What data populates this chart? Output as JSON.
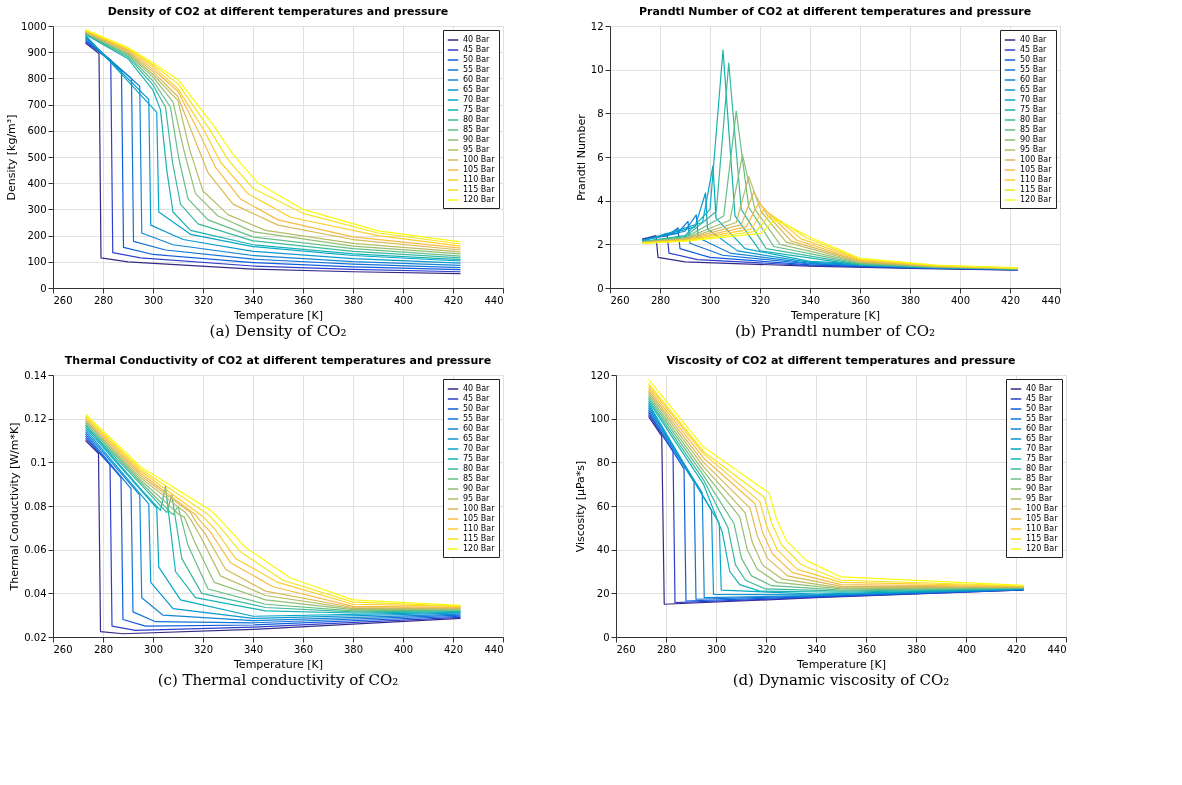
{
  "chart_data": [
    {
      "type": "line",
      "title": "Density of CO2 at different temperatures and pressure",
      "xlabel": "Temperature [K]",
      "ylabel": "Density [kg/m³]",
      "xlim": [
        260,
        440
      ],
      "xticks": [
        260,
        280,
        300,
        320,
        340,
        360,
        380,
        400,
        420,
        440
      ],
      "ylim": [
        0,
        1000
      ],
      "yticks": [
        0,
        100,
        200,
        300,
        400,
        500,
        600,
        700,
        800,
        900,
        1000
      ],
      "grid": true,
      "legend": "top right",
      "annotations": [
        "(a) Density of CO₂"
      ],
      "series": [
        {
          "name": "40 Bar",
          "color": "#352a87",
          "x": [
            273,
            278.4,
            279.2,
            290,
            340,
            380,
            423
          ],
          "values": [
            935,
            895,
            115,
            100,
            72,
            62,
            55
          ]
        },
        {
          "name": "45 Bar",
          "color": "#2f3fcd",
          "x": [
            273,
            283.1,
            283.9,
            295,
            340,
            380,
            423
          ],
          "values": [
            940,
            870,
            135,
            115,
            84,
            71,
            62
          ]
        },
        {
          "name": "50 Bar",
          "color": "#0f5cdd",
          "x": [
            273,
            287.4,
            288.2,
            300,
            340,
            380,
            423
          ],
          "values": [
            945,
            830,
            155,
            128,
            97,
            81,
            70
          ]
        },
        {
          "name": "55 Bar",
          "color": "#1172d9",
          "x": [
            273,
            291.4,
            292.2,
            305,
            340,
            380,
            423
          ],
          "values": [
            950,
            800,
            178,
            145,
            110,
            91,
            78
          ]
        },
        {
          "name": "60 Bar",
          "color": "#1485d4",
          "x": [
            273,
            294.7,
            295.5,
            308,
            340,
            380,
            423
          ],
          "values": [
            955,
            770,
            210,
            165,
            124,
            101,
            86
          ]
        },
        {
          "name": "65 Bar",
          "color": "#0998d1",
          "x": [
            273,
            298.3,
            299.1,
            312,
            340,
            380,
            423
          ],
          "values": [
            960,
            720,
            240,
            185,
            140,
            112,
            95
          ]
        },
        {
          "name": "70 Bar",
          "color": "#06a7c6",
          "x": [
            273,
            301.5,
            302.3,
            315,
            340,
            380,
            423
          ],
          "values": [
            965,
            670,
            290,
            205,
            158,
            124,
            103
          ]
        },
        {
          "name": "75 Bar",
          "color": "#15b1b4",
          "x": [
            273,
            290,
            300,
            303,
            305.5,
            308,
            315,
            340,
            380,
            423
          ],
          "values": [
            968,
            875,
            755,
            680,
            450,
            290,
            220,
            165,
            130,
            108
          ]
        },
        {
          "name": "80 Bar",
          "color": "#38b99e",
          "x": [
            273,
            290,
            300,
            305,
            307.8,
            311,
            318,
            340,
            380,
            423
          ],
          "values": [
            970,
            882,
            775,
            690,
            480,
            320,
            245,
            180,
            140,
            115
          ]
        },
        {
          "name": "85 Bar",
          "color": "#65be86",
          "x": [
            273,
            290,
            300,
            307,
            310.2,
            314,
            322,
            340,
            380,
            423
          ],
          "values": [
            972,
            888,
            790,
            690,
            500,
            340,
            260,
            195,
            150,
            122
          ]
        },
        {
          "name": "90 Bar",
          "color": "#92bf73",
          "x": [
            273,
            290,
            300,
            308,
            312.5,
            317,
            326,
            340,
            380,
            423
          ],
          "values": [
            974,
            893,
            805,
            710,
            520,
            360,
            275,
            215,
            160,
            130
          ]
        },
        {
          "name": "95 Bar",
          "color": "#b7bd64",
          "x": [
            273,
            290,
            300,
            310,
            314.6,
            320,
            330,
            345,
            380,
            423
          ],
          "values": [
            976,
            898,
            815,
            715,
            530,
            370,
            280,
            220,
            170,
            138
          ]
        },
        {
          "name": "100 Bar",
          "color": "#d9ba56",
          "x": [
            273,
            290,
            300,
            310,
            316.6,
            322,
            332,
            350,
            380,
            423
          ],
          "values": [
            978,
            903,
            825,
            730,
            570,
            440,
            320,
            240,
            185,
            145
          ]
        },
        {
          "name": "105 Bar",
          "color": "#f8bb44",
          "x": [
            273,
            290,
            300,
            310,
            318.6,
            325,
            335,
            350,
            380,
            423
          ],
          "values": [
            980,
            907,
            835,
            750,
            590,
            460,
            340,
            260,
            195,
            152
          ]
        },
        {
          "name": "110 Bar",
          "color": "#fcce2e",
          "x": [
            273,
            290,
            300,
            310,
            320.5,
            327,
            338,
            355,
            390,
            423
          ],
          "values": [
            982,
            911,
            845,
            760,
            600,
            480,
            360,
            270,
            200,
            160
          ]
        },
        {
          "name": "115 Bar",
          "color": "#f5e41d",
          "x": [
            273,
            290,
            300,
            310,
            322.3,
            330,
            340,
            360,
            390,
            423
          ],
          "values": [
            984,
            915,
            852,
            780,
            610,
            490,
            380,
            285,
            210,
            168
          ]
        },
        {
          "name": "120 Bar",
          "color": "#f9fb0e",
          "x": [
            273,
            290,
            300,
            310,
            324.2,
            332,
            342,
            360,
            390,
            423
          ],
          "values": [
            986,
            918,
            860,
            795,
            620,
            510,
            400,
            300,
            218,
            176
          ]
        }
      ]
    },
    {
      "type": "line",
      "title": "Prandtl Number of CO2 at different temperatures and pressure",
      "xlabel": "Temperature [K]",
      "ylabel": "Prandtl Number",
      "xlim": [
        260,
        440
      ],
      "xticks": [
        260,
        280,
        300,
        320,
        340,
        360,
        380,
        400,
        420,
        440
      ],
      "ylim": [
        0,
        12
      ],
      "yticks": [
        0,
        2,
        4,
        6,
        8,
        10,
        12
      ],
      "grid": true,
      "legend": "top right",
      "annotations": [
        "(b) Prandtl number of CO₂"
      ],
      "series": [
        {
          "name": "40 Bar",
          "color": "#352a87",
          "x": [
            273,
            275,
            278.4,
            279.2,
            290,
            340,
            380,
            423
          ],
          "values": [
            2.25,
            2.3,
            2.4,
            1.4,
            1.2,
            1.0,
            0.9,
            0.82
          ]
        },
        {
          "name": "45 Bar",
          "color": "#2f3fcd",
          "x": [
            273,
            279,
            282.8,
            283.6,
            295,
            340,
            380,
            423
          ],
          "values": [
            2.24,
            2.35,
            2.5,
            1.6,
            1.3,
            1.03,
            0.92,
            0.83
          ]
        },
        {
          "name": "50 Bar",
          "color": "#0f5cdd",
          "x": [
            273,
            283,
            287.2,
            288,
            300,
            340,
            380,
            423
          ],
          "values": [
            2.22,
            2.4,
            2.75,
            1.8,
            1.4,
            1.06,
            0.93,
            0.84
          ]
        },
        {
          "name": "55 Bar",
          "color": "#1172d9",
          "x": [
            273,
            287,
            291.2,
            292,
            305,
            340,
            380,
            423
          ],
          "values": [
            2.2,
            2.5,
            3.05,
            2.05,
            1.5,
            1.1,
            0.95,
            0.85
          ]
        },
        {
          "name": "60 Bar",
          "color": "#1485d4",
          "x": [
            273,
            290,
            294.5,
            295.3,
            308,
            340,
            380,
            423
          ],
          "values": [
            2.19,
            2.6,
            3.35,
            2.3,
            1.6,
            1.13,
            0.96,
            0.85
          ]
        },
        {
          "name": "65 Bar",
          "color": "#0998d1",
          "x": [
            273,
            294,
            298.2,
            299,
            311,
            340,
            380,
            423
          ],
          "values": [
            2.17,
            2.8,
            4.35,
            2.7,
            1.7,
            1.17,
            0.98,
            0.86
          ]
        },
        {
          "name": "70 Bar",
          "color": "#06a7c6",
          "x": [
            273,
            297,
            301.2,
            302.4,
            314,
            340,
            380,
            423
          ],
          "values": [
            2.15,
            3.0,
            5.6,
            3.2,
            1.8,
            1.22,
            1.0,
            0.86
          ]
        },
        {
          "name": "75 Bar",
          "color": "#15b1b4",
          "x": [
            273,
            290,
            300,
            305.2,
            310,
            320,
            360,
            390,
            423
          ],
          "values": [
            2.13,
            2.4,
            3.6,
            10.9,
            3.3,
            1.7,
            1.05,
            0.93,
            0.87
          ]
        },
        {
          "name": "80 Bar",
          "color": "#38b99e",
          "x": [
            273,
            290,
            302.5,
            307.5,
            312.5,
            322.5,
            360,
            390,
            423
          ],
          "values": [
            2.12,
            2.35,
            3.5,
            10.3,
            3.6,
            1.8,
            1.08,
            0.95,
            0.88
          ]
        },
        {
          "name": "85 Bar",
          "color": "#65be86",
          "x": [
            273,
            290,
            305.5,
            310.5,
            315.5,
            325.5,
            360,
            390,
            423
          ],
          "values": [
            2.11,
            2.3,
            3.3,
            8.1,
            3.7,
            1.9,
            1.12,
            0.96,
            0.88
          ]
        },
        {
          "name": "90 Bar",
          "color": "#92bf73",
          "x": [
            273,
            290,
            308,
            313,
            318,
            328,
            360,
            390,
            423
          ],
          "values": [
            2.1,
            2.28,
            3.1,
            6.1,
            3.6,
            2.0,
            1.15,
            0.97,
            0.89
          ]
        },
        {
          "name": "95 Bar",
          "color": "#b7bd64",
          "x": [
            273,
            290,
            310.5,
            315.5,
            320.5,
            330.5,
            360,
            390,
            423
          ],
          "values": [
            2.09,
            2.25,
            3.0,
            5.1,
            3.5,
            2.1,
            1.18,
            0.98,
            0.89
          ]
        },
        {
          "name": "100 Bar",
          "color": "#d9ba56",
          "x": [
            273,
            290,
            312.5,
            317.5,
            322.5,
            332.5,
            360,
            390,
            423
          ],
          "values": [
            2.08,
            2.22,
            2.9,
            4.4,
            3.4,
            2.15,
            1.22,
            1.0,
            0.9
          ]
        },
        {
          "name": "105 Bar",
          "color": "#f8bb44",
          "x": [
            273,
            290,
            314.5,
            319.5,
            324.5,
            334.5,
            360,
            390,
            423
          ],
          "values": [
            2.07,
            2.2,
            2.8,
            3.9,
            3.3,
            2.2,
            1.25,
            1.01,
            0.9
          ]
        },
        {
          "name": "110 Bar",
          "color": "#fcce2e",
          "x": [
            273,
            290,
            316.5,
            321.5,
            326.5,
            336.5,
            360,
            390,
            423
          ],
          "values": [
            2.06,
            2.18,
            2.7,
            3.6,
            3.2,
            2.25,
            1.3,
            1.02,
            0.91
          ]
        },
        {
          "name": "115 Bar",
          "color": "#f5e41d",
          "x": [
            273,
            290,
            318.5,
            323.5,
            328.5,
            338.5,
            360,
            390,
            423
          ],
          "values": [
            2.05,
            2.16,
            2.6,
            3.3,
            3.05,
            2.3,
            1.33,
            1.04,
            0.91
          ]
        },
        {
          "name": "120 Bar",
          "color": "#f9fb0e",
          "x": [
            273,
            290,
            320.5,
            325.5,
            330.5,
            340.5,
            360,
            390,
            423
          ],
          "values": [
            2.04,
            2.15,
            2.5,
            3.1,
            2.9,
            2.3,
            1.36,
            1.05,
            0.92
          ]
        }
      ]
    },
    {
      "type": "line",
      "title": "Thermal Conductivity of CO2 at different temperatures and pressure",
      "xlabel": "Temperature [K]",
      "ylabel": "Thermal Conductivity [W/m*K]",
      "xlim": [
        260,
        440
      ],
      "xticks": [
        260,
        280,
        300,
        320,
        340,
        360,
        380,
        400,
        420,
        440
      ],
      "ylim": [
        0.02,
        0.14
      ],
      "yticks": [
        0.02,
        0.04,
        0.06,
        0.08,
        0.1,
        0.12,
        0.14
      ],
      "grid": true,
      "legend": "top right",
      "annotations": [
        "(c) Thermal conductivity of CO₂"
      ],
      "series": [
        {
          "name": "40 Bar",
          "color": "#352a87",
          "x": [
            273,
            278.2,
            279,
            288,
            340,
            423
          ],
          "values": [
            0.11,
            0.104,
            0.0225,
            0.0215,
            0.0235,
            0.0285
          ]
        },
        {
          "name": "45 Bar",
          "color": "#2f3fcd",
          "x": [
            273,
            282.8,
            283.6,
            293,
            340,
            423
          ],
          "values": [
            0.111,
            0.099,
            0.025,
            0.023,
            0.0245,
            0.029
          ]
        },
        {
          "name": "50 Bar",
          "color": "#0f5cdd",
          "x": [
            273,
            287.2,
            288,
            297,
            340,
            423
          ],
          "values": [
            0.112,
            0.093,
            0.028,
            0.025,
            0.0255,
            0.0295
          ]
        },
        {
          "name": "55 Bar",
          "color": "#1172d9",
          "x": [
            273,
            291.2,
            292,
            301,
            340,
            423
          ],
          "values": [
            0.113,
            0.088,
            0.0315,
            0.027,
            0.0265,
            0.03
          ]
        },
        {
          "name": "60 Bar",
          "color": "#1485d4",
          "x": [
            273,
            294.7,
            295.5,
            304,
            340,
            423
          ],
          "values": [
            0.114,
            0.085,
            0.038,
            0.03,
            0.0275,
            0.0305
          ]
        },
        {
          "name": "65 Bar",
          "color": "#0998d1",
          "x": [
            273,
            298.3,
            299.1,
            308,
            340,
            423
          ],
          "values": [
            0.115,
            0.081,
            0.045,
            0.033,
            0.0285,
            0.031
          ]
        },
        {
          "name": "70 Bar",
          "color": "#06a7c6",
          "x": [
            273,
            301.5,
            302.3,
            311,
            340,
            423
          ],
          "values": [
            0.116,
            0.079,
            0.052,
            0.037,
            0.0295,
            0.0313
          ]
        },
        {
          "name": "75 Bar",
          "color": "#15b1b4",
          "x": [
            273,
            295,
            303,
            305,
            309,
            317,
            345,
            380,
            423
          ],
          "values": [
            0.117,
            0.088,
            0.078,
            0.089,
            0.05,
            0.038,
            0.032,
            0.031,
            0.0316
          ]
        },
        {
          "name": "80 Bar",
          "color": "#38b99e",
          "x": [
            273,
            295,
            305.5,
            307.5,
            311.5,
            319.5,
            345,
            380,
            423
          ],
          "values": [
            0.117,
            0.09,
            0.077,
            0.085,
            0.056,
            0.04,
            0.0335,
            0.0315,
            0.032
          ]
        },
        {
          "name": "85 Bar",
          "color": "#65be86",
          "x": [
            273,
            295,
            308,
            310,
            314,
            322,
            345,
            380,
            423
          ],
          "values": [
            0.118,
            0.091,
            0.076,
            0.08,
            0.062,
            0.042,
            0.035,
            0.032,
            0.0323
          ]
        },
        {
          "name": "90 Bar",
          "color": "#92bf73",
          "x": [
            273,
            295,
            310.5,
            312.5,
            316.5,
            324.5,
            345,
            380,
            423
          ],
          "values": [
            0.119,
            0.092,
            0.076,
            0.075,
            0.064,
            0.045,
            0.037,
            0.0325,
            0.0327
          ]
        },
        {
          "name": "95 Bar",
          "color": "#b7bd64",
          "x": [
            273,
            295,
            313,
            315,
            319,
            327,
            345,
            380,
            423
          ],
          "values": [
            0.119,
            0.093,
            0.077,
            0.074,
            0.066,
            0.048,
            0.039,
            0.033,
            0.033
          ]
        },
        {
          "name": "100 Bar",
          "color": "#d9ba56",
          "x": [
            273,
            295,
            315,
            317,
            321,
            329,
            345,
            380,
            423
          ],
          "values": [
            0.12,
            0.094,
            0.077,
            0.073,
            0.067,
            0.051,
            0.041,
            0.0335,
            0.0333
          ]
        },
        {
          "name": "105 Bar",
          "color": "#f8bb44",
          "x": [
            273,
            295,
            317,
            319,
            323,
            331,
            348,
            380,
            423
          ],
          "values": [
            0.12,
            0.095,
            0.076,
            0.073,
            0.068,
            0.054,
            0.043,
            0.034,
            0.0336
          ]
        },
        {
          "name": "110 Bar",
          "color": "#fcce2e",
          "x": [
            273,
            295,
            319,
            321,
            325,
            333,
            350,
            380,
            423
          ],
          "values": [
            0.121,
            0.096,
            0.076,
            0.074,
            0.069,
            0.056,
            0.045,
            0.035,
            0.034
          ]
        },
        {
          "name": "115 Bar",
          "color": "#f5e41d",
          "x": [
            273,
            295,
            321,
            323,
            327,
            335,
            352,
            380,
            423
          ],
          "values": [
            0.121,
            0.097,
            0.077,
            0.075,
            0.07,
            0.059,
            0.046,
            0.036,
            0.0342
          ]
        },
        {
          "name": "120 Bar",
          "color": "#f9fb0e",
          "x": [
            273,
            295,
            323,
            325,
            329,
            337,
            355,
            380,
            423
          ],
          "values": [
            0.122,
            0.098,
            0.078,
            0.076,
            0.071,
            0.061,
            0.047,
            0.037,
            0.0345
          ]
        }
      ]
    },
    {
      "type": "line",
      "title": "Viscosity of CO2 at different temperatures and pressure",
      "xlabel": "Temperature [K]",
      "ylabel": "Viscosity [μPa*s]",
      "xlim": [
        260,
        440
      ],
      "xticks": [
        260,
        280,
        300,
        320,
        340,
        360,
        380,
        400,
        420,
        440
      ],
      "ylim": [
        0,
        120
      ],
      "yticks": [
        0,
        20,
        40,
        60,
        80,
        100,
        120
      ],
      "grid": true,
      "legend": "top right",
      "annotations": [
        "(d) Dynamic viscosity of CO₂"
      ],
      "series": [
        {
          "name": "40 Bar",
          "color": "#352a87",
          "x": [
            273,
            278.3,
            279.3,
            340,
            423
          ],
          "values": [
            101,
            92,
            15,
            18,
            21.5
          ]
        },
        {
          "name": "45 Bar",
          "color": "#2f3fcd",
          "x": [
            273,
            282.8,
            283.6,
            340,
            423
          ],
          "values": [
            102,
            85,
            15.7,
            18.2,
            21.6
          ]
        },
        {
          "name": "50 Bar",
          "color": "#0f5cdd",
          "x": [
            273,
            287.2,
            288,
            340,
            423
          ],
          "values": [
            103,
            77,
            16.5,
            18.5,
            21.7
          ]
        },
        {
          "name": "55 Bar",
          "color": "#1172d9",
          "x": [
            273,
            291.2,
            292,
            340,
            423
          ],
          "values": [
            104,
            71,
            17.3,
            18.8,
            21.8
          ]
        },
        {
          "name": "60 Bar",
          "color": "#1485d4",
          "x": [
            273,
            294.5,
            295.3,
            340,
            423
          ],
          "values": [
            105,
            66,
            18,
            19,
            21.9
          ]
        },
        {
          "name": "65 Bar",
          "color": "#0998d1",
          "x": [
            273,
            298.2,
            299,
            340,
            423
          ],
          "values": [
            106,
            58,
            19.5,
            19.3,
            22
          ]
        },
        {
          "name": "70 Bar",
          "color": "#06a7c6",
          "x": [
            273,
            301.3,
            302.1,
            340,
            423
          ],
          "values": [
            107,
            52,
            21.5,
            19.6,
            22.1
          ]
        },
        {
          "name": "75 Bar",
          "color": "#15b1b4",
          "x": [
            273,
            295,
            302.5,
            305.5,
            309.5,
            317.5,
            350,
            423
          ],
          "values": [
            108,
            70,
            48,
            30,
            24,
            21,
            20.5,
            22.2
          ]
        },
        {
          "name": "80 Bar",
          "color": "#38b99e",
          "x": [
            273,
            295,
            304.8,
            307.8,
            311.8,
            319.8,
            350,
            423
          ],
          "values": [
            109,
            72,
            50,
            33,
            26,
            22,
            21,
            22.3
          ]
        },
        {
          "name": "85 Bar",
          "color": "#65be86",
          "x": [
            273,
            295,
            307.2,
            310.2,
            314.2,
            322.2,
            350,
            423
          ],
          "values": [
            110,
            74,
            52,
            36,
            28,
            23.5,
            21.5,
            22.5
          ]
        },
        {
          "name": "90 Bar",
          "color": "#92bf73",
          "x": [
            273,
            295,
            309.5,
            312.5,
            316.5,
            324.5,
            350,
            423
          ],
          "values": [
            111,
            76,
            55,
            40,
            31,
            25,
            22,
            22.6
          ]
        },
        {
          "name": "95 Bar",
          "color": "#b7bd64",
          "x": [
            273,
            295,
            311.6,
            314.6,
            318.6,
            326.6,
            350,
            423
          ],
          "values": [
            112,
            78,
            57,
            43,
            33,
            26.5,
            22.5,
            22.8
          ]
        },
        {
          "name": "100 Bar",
          "color": "#d9ba56",
          "x": [
            273,
            295,
            313.6,
            316.6,
            320.6,
            328.6,
            350,
            423
          ],
          "values": [
            113,
            80,
            59,
            46,
            36,
            28,
            23.2,
            23
          ]
        },
        {
          "name": "105 Bar",
          "color": "#f8bb44",
          "x": [
            273,
            295,
            315.6,
            318.6,
            322.6,
            330.6,
            350,
            423
          ],
          "values": [
            114,
            82,
            61,
            48,
            38,
            29.5,
            24,
            23.1
          ]
        },
        {
          "name": "110 Bar",
          "color": "#fcce2e",
          "x": [
            273,
            295,
            317.5,
            320.5,
            324.5,
            332.5,
            350,
            423
          ],
          "values": [
            115,
            84,
            62,
            50,
            40,
            31,
            25,
            23.3
          ]
        },
        {
          "name": "115 Bar",
          "color": "#f5e41d",
          "x": [
            273,
            295,
            319.3,
            322.3,
            326.3,
            334.3,
            350,
            423
          ],
          "values": [
            116,
            85,
            64,
            52,
            42,
            33,
            26,
            23.4
          ]
        },
        {
          "name": "120 Bar",
          "color": "#f9fb0e",
          "x": [
            273,
            295,
            321.2,
            324.2,
            328.2,
            336.2,
            350,
            423
          ],
          "values": [
            118,
            87,
            66,
            54,
            44,
            35,
            27.5,
            23.6
          ]
        }
      ]
    }
  ]
}
